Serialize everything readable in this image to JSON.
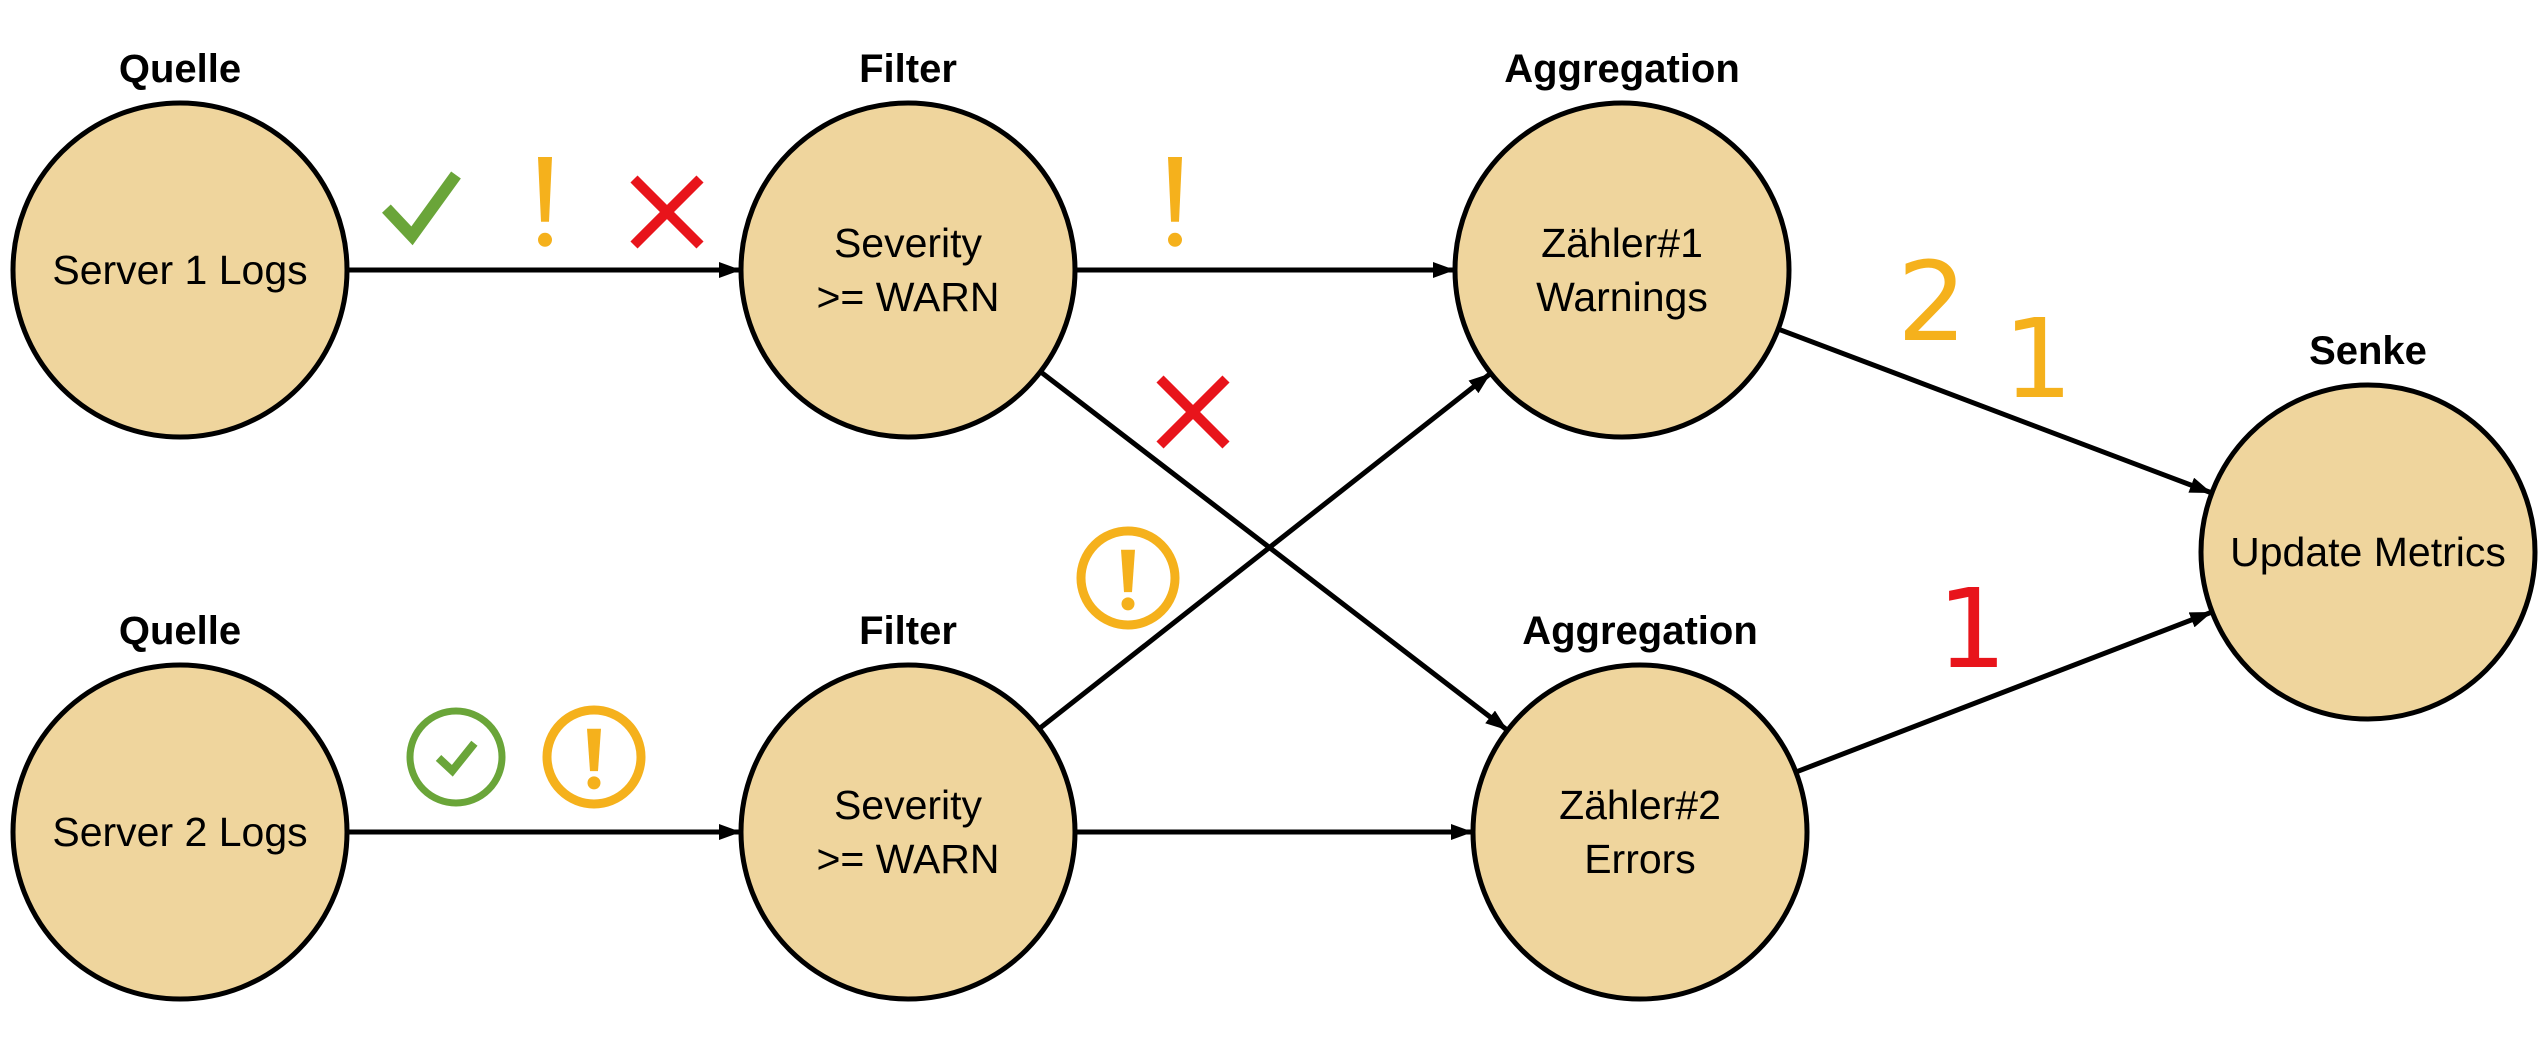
{
  "colors": {
    "node_fill": "#efd59d",
    "stroke": "#000000",
    "ok": "#6aa539",
    "warn": "#f5b11c",
    "error": "#e8141b"
  },
  "nodes": [
    {
      "id": "source1",
      "stage": "Quelle",
      "lines": [
        "Server 1 Logs"
      ]
    },
    {
      "id": "source2",
      "stage": "Quelle",
      "lines": [
        "Server 2 Logs"
      ]
    },
    {
      "id": "filter1",
      "stage": "Filter",
      "lines": [
        "Severity",
        ">= WARN"
      ]
    },
    {
      "id": "filter2",
      "stage": "Filter",
      "lines": [
        "Severity",
        ">= WARN"
      ]
    },
    {
      "id": "agg1",
      "stage": "Aggregation",
      "lines": [
        "Zähler#1",
        "Warnings"
      ]
    },
    {
      "id": "agg2",
      "stage": "Aggregation",
      "lines": [
        "Zähler#2",
        "Errors"
      ]
    },
    {
      "id": "sink",
      "stage": "Senke",
      "lines": [
        "Update Metrics"
      ]
    }
  ],
  "edges": [
    {
      "from": "source1",
      "to": "filter1"
    },
    {
      "from": "source2",
      "to": "filter2"
    },
    {
      "from": "filter1",
      "to": "agg1"
    },
    {
      "from": "filter1",
      "to": "agg2"
    },
    {
      "from": "filter2",
      "to": "agg1"
    },
    {
      "from": "filter2",
      "to": "agg2"
    },
    {
      "from": "agg1",
      "to": "sink"
    },
    {
      "from": "agg2",
      "to": "sink"
    }
  ],
  "event_markers": [
    {
      "edge": "source1-filter1",
      "icons": [
        "check-icon",
        "exclamation-icon",
        "cross-icon"
      ]
    },
    {
      "edge": "filter1-agg1",
      "icons": [
        "exclamation-icon"
      ]
    },
    {
      "edge": "filter1-agg2",
      "icons": [
        "cross-icon"
      ]
    },
    {
      "edge": "filter2-agg1",
      "icons": [
        "circled-exclamation-icon"
      ]
    },
    {
      "edge": "source2-filter2",
      "icons": [
        "circled-check-icon",
        "circled-exclamation-icon"
      ]
    }
  ],
  "counts": [
    {
      "edge": "agg1-sink",
      "values": [
        "2",
        "1"
      ],
      "color": "warn"
    },
    {
      "edge": "agg2-sink",
      "values": [
        "1"
      ],
      "color": "error"
    }
  ]
}
